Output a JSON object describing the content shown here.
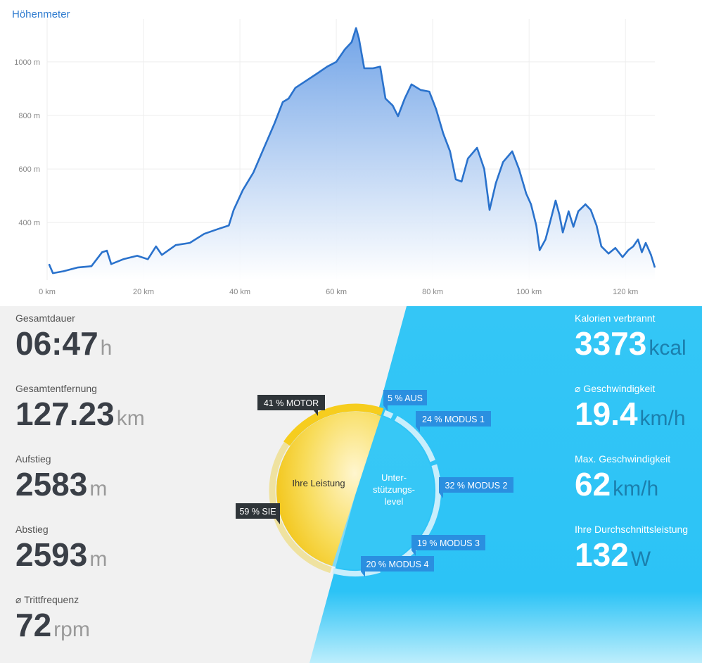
{
  "header": {
    "title": "Höhenmeter"
  },
  "chart_data": {
    "type": "area",
    "color": "#2a72cc",
    "x": [
      0.4,
      1.2,
      3.4,
      6.3,
      9.2,
      11.4,
      12.4,
      13.3,
      15.8,
      18.7,
      20.9,
      22.6,
      23.8,
      26.7,
      29.6,
      32.6,
      35.5,
      37.7,
      38.7,
      40.6,
      42.8,
      45.0,
      47.2,
      48.9,
      50.1,
      51.5,
      53.7,
      55.9,
      58.1,
      60.0,
      61.8,
      63.2,
      64.1,
      64.7,
      65.8,
      67.6,
      69.1,
      70.2,
      71.7,
      72.8,
      74.2,
      75.6,
      77.5,
      79.3,
      80.7,
      82.2,
      83.6,
      84.8,
      86.0,
      87.3,
      89.2,
      90.7,
      91.8,
      93.1,
      94.6,
      96.5,
      97.9,
      99.4,
      100.4,
      101.5,
      102.2,
      103.4,
      104.1,
      105.5,
      106.3,
      107.0,
      108.2,
      109.2,
      110.2,
      111.7,
      112.8,
      114.0,
      115.0,
      116.5,
      117.9,
      119.4,
      120.6,
      121.6,
      122.6,
      123.4,
      124.2,
      125.3,
      126.1
    ],
    "values": [
      245,
      211,
      218,
      232,
      237,
      289,
      295,
      245,
      263,
      276,
      263,
      311,
      279,
      316,
      324,
      358,
      376,
      389,
      447,
      521,
      587,
      679,
      771,
      850,
      863,
      903,
      929,
      955,
      982,
      1000,
      1047,
      1074,
      1126,
      1087,
      976,
      976,
      982,
      863,
      837,
      797,
      863,
      916,
      895,
      889,
      824,
      732,
      666,
      561,
      553,
      639,
      679,
      600,
      447,
      547,
      626,
      666,
      600,
      508,
      468,
      389,
      297,
      337,
      384,
      482,
      429,
      363,
      442,
      384,
      442,
      468,
      447,
      389,
      311,
      284,
      305,
      271,
      297,
      311,
      337,
      289,
      324,
      279,
      232
    ],
    "xlim": [
      0,
      126.1
    ],
    "ylim": [
      185,
      1160
    ],
    "xticks": [
      {
        "value": 0,
        "label": "0 km"
      },
      {
        "value": 20,
        "label": "20 km"
      },
      {
        "value": 40,
        "label": "40 km"
      },
      {
        "value": 60,
        "label": "60 km"
      },
      {
        "value": 80,
        "label": "80 km"
      },
      {
        "value": 100,
        "label": "100 km"
      },
      {
        "value": 120,
        "label": "120 km"
      }
    ],
    "yticks": [
      {
        "value": 400,
        "label": "400 m"
      },
      {
        "value": 600,
        "label": "600 m"
      },
      {
        "value": 800,
        "label": "800 m"
      },
      {
        "value": 1000,
        "label": "1000 m"
      }
    ],
    "grid": true
  },
  "left_stats": [
    {
      "label": "Gesamtdauer",
      "value": "06:47",
      "unit": "h"
    },
    {
      "label": "Gesamtentfernung",
      "value": "127.23",
      "unit": "km"
    },
    {
      "label": "Aufstieg",
      "value": "2583",
      "unit": "m"
    },
    {
      "label": "Abstieg",
      "value": "2593",
      "unit": "m"
    },
    {
      "label": "⌀ Trittfrequenz",
      "value": "72",
      "unit": "rpm"
    }
  ],
  "right_stats": [
    {
      "label": "Kalorien verbrannt",
      "value": "3373",
      "unit": "kcal"
    },
    {
      "label": "⌀ Geschwindigkeit",
      "value": "19.4",
      "unit": "km/h"
    },
    {
      "label": "Max. Geschwindigkeit",
      "value": "62",
      "unit": "km/h"
    },
    {
      "label": "Ihre Durchschnittsleistung",
      "value": "132",
      "unit": "W"
    }
  ],
  "donut": {
    "leistung": {
      "label": "Ihre Leistung",
      "segments": [
        {
          "value": 41,
          "label": "41 % MOTOR"
        },
        {
          "value": 59,
          "label": "59 % SIE"
        }
      ]
    },
    "unterstuetzung": {
      "label_lines": [
        "Unter-",
        "stützungs-",
        "level"
      ],
      "segments": [
        {
          "value": 5,
          "label": "5 % AUS"
        },
        {
          "value": 24,
          "label": "24 % MODUS 1"
        },
        {
          "value": 32,
          "label": "32 % MODUS 2"
        },
        {
          "value": 19,
          "label": "19 % MODUS 3"
        },
        {
          "value": 20,
          "label": "20 % MODUS 4"
        }
      ]
    }
  }
}
